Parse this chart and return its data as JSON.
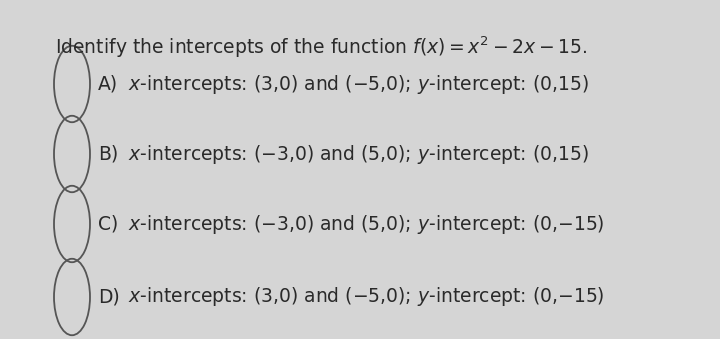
{
  "background_color": "#d5d5d5",
  "options": [
    {
      "label": "A)",
      "text": "x-intercepts: (3,0) and (−5,0); y-intercept: (0,15)"
    },
    {
      "label": "B)",
      "text": "x-intercepts: (−3,0) and (5,0); y-intercept: (0,15)"
    },
    {
      "label": "C)",
      "text": "x-intercepts: (−3,0) and (5,0); y-intercept: (0,−15)"
    },
    {
      "label": "D)",
      "text": "x-intercepts: (3,0) and (−5,0); y-intercept: (0,−15)"
    }
  ],
  "font_size_title": 13.5,
  "font_size_options": 13.5,
  "text_color": "#2a2a2a",
  "circle_color": "#555555"
}
